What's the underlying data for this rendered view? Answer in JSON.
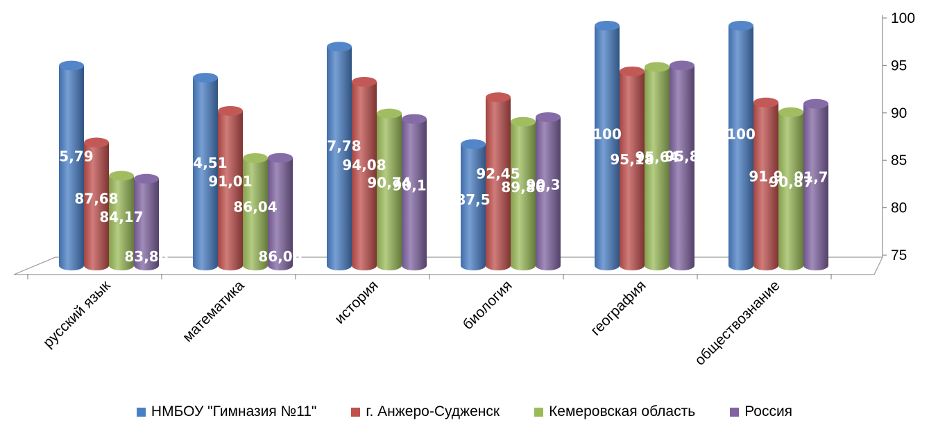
{
  "chart_data": {
    "type": "bar",
    "style": "3d-cylinder",
    "categories": [
      "русский язык",
      "математика",
      "история",
      "биология",
      "география",
      "обществознание"
    ],
    "series": [
      {
        "name": "НМБОУ \"Гимназия №11\"",
        "color": "#4a7fc6",
        "values": [
          95.79,
          94.51,
          97.78,
          87.5,
          100,
          100
        ]
      },
      {
        "name": "г. Анжеро-Судженск",
        "color": "#c0504d",
        "values": [
          87.68,
          91.01,
          94.08,
          92.45,
          95.18,
          91.9
        ]
      },
      {
        "name": "Кемеровская область",
        "color": "#9bbb59",
        "values": [
          84.17,
          86.04,
          90.74,
          89.86,
          95.64,
          90.87
        ]
      },
      {
        "name": "Россия",
        "color": "#8064a2",
        "values": [
          83.86,
          86.06,
          90.16,
          90.35,
          95.8,
          91.76
        ]
      }
    ],
    "data_labels": [
      [
        "95,79",
        "94,51",
        "97,78",
        "87,5",
        "100",
        "100"
      ],
      [
        "87,68",
        "91,01",
        "94,08",
        "92,45",
        "95,18",
        "91,9"
      ],
      [
        "84,17",
        "86,04",
        "90,74",
        "89,86",
        "95,64",
        "90,87"
      ],
      [
        "83,86",
        "86,06",
        "90,16",
        "90,35",
        "95,8",
        "91,76"
      ]
    ],
    "y_ticks": [
      "75",
      "80",
      "85",
      "90",
      "95",
      "100"
    ],
    "ylim": [
      75,
      100
    ],
    "y_axis_position": "right",
    "legend_position": "bottom",
    "grid": false,
    "title": "",
    "xlabel": "",
    "ylabel": ""
  }
}
